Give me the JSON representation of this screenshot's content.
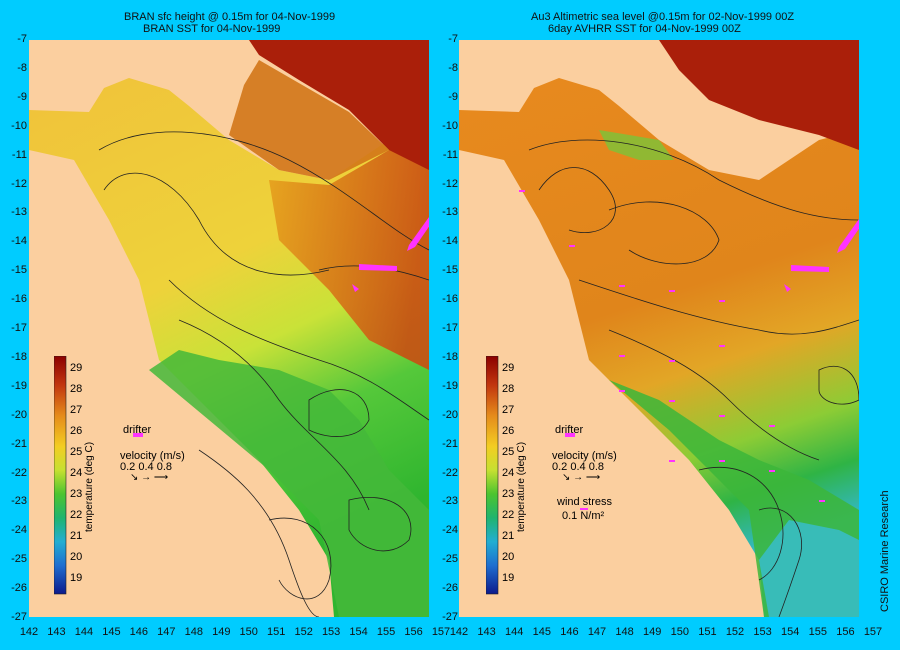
{
  "left_panel": {
    "title_line1": "BRAN sfc height @ 0.15m for 04-Nov-1999",
    "title_line2": "BRAN SST for 04-Nov-1999",
    "legend": {
      "drifter_label": "drifter",
      "velocity_label": "velocity (m/s)",
      "velocity_scale": "0.2 0.4 0.8"
    }
  },
  "right_panel": {
    "title_line1": "Au3 Altimetric sea level  @0.15m  for 02-Nov-1999 00Z",
    "title_line2": "6day AVHRR SST for 04-Nov-1999 00Z",
    "legend": {
      "drifter_label": "drifter",
      "velocity_label": "velocity (m/s)",
      "velocity_scale": "0.2 0.4 0.8",
      "wind_label": "wind stress",
      "wind_value": "0.1 N/m²"
    }
  },
  "colorbar": {
    "label": "temperature (deg C)",
    "ticks": [
      "29",
      "28",
      "27",
      "26",
      "25",
      "24",
      "23",
      "22",
      "21",
      "20",
      "19"
    ]
  },
  "axes": {
    "lat_labels": [
      "-7",
      "-8",
      "-9",
      "-10",
      "-11",
      "-12",
      "-13",
      "-14",
      "-15",
      "-16",
      "-17",
      "-18",
      "-19",
      "-20",
      "-21",
      "-22",
      "-23",
      "-24",
      "-25",
      "-26",
      "-27"
    ],
    "lon_labels": [
      "142",
      "143",
      "144",
      "145",
      "146",
      "147",
      "148",
      "149",
      "150",
      "151",
      "152",
      "153",
      "154",
      "155",
      "156",
      "157"
    ]
  },
  "credit": "CSIRO Marine Research",
  "colors": {
    "frame": "#00ccff",
    "land": "#fbcf9f",
    "drifter": "#ff33ff"
  }
}
